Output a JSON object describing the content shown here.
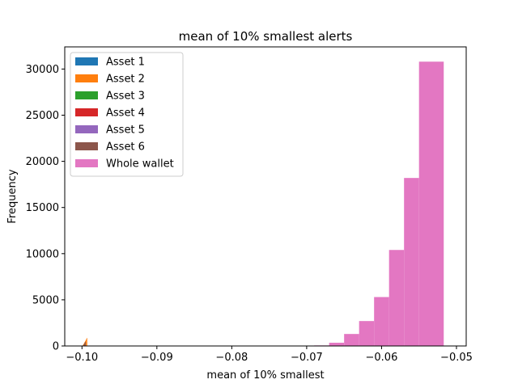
{
  "chart_data": {
    "type": "bar",
    "title": "mean of 10% smallest alerts",
    "xlabel": "mean of 10% smallest",
    "ylabel": "Frequency",
    "xlim": [
      -0.1023,
      -0.0487
    ],
    "ylim": [
      0,
      32400
    ],
    "xticks": [
      -0.1,
      -0.09,
      -0.08,
      -0.07,
      -0.06,
      -0.05
    ],
    "xtick_labels": [
      "−0.10",
      "−0.09",
      "−0.08",
      "−0.07",
      "−0.06",
      "−0.05"
    ],
    "yticks": [
      0,
      5000,
      10000,
      15000,
      20000,
      25000,
      30000
    ],
    "ytick_labels": [
      "0",
      "5000",
      "10000",
      "15000",
      "20000",
      "25000",
      "30000"
    ],
    "legend_position": "upper-left",
    "series": [
      {
        "name": "Asset 1",
        "color": "#1f77b4",
        "bins": [
          [
            -0.1,
            -0.0999,
            40
          ],
          [
            -0.0999,
            -0.0998,
            60
          ]
        ]
      },
      {
        "name": "Asset 2",
        "color": "#ff7f0e",
        "bins": [
          [
            -0.0999,
            -0.0998,
            120
          ],
          [
            -0.0998,
            -0.0997,
            250
          ],
          [
            -0.0997,
            -0.0996,
            400
          ],
          [
            -0.0996,
            -0.0995,
            550
          ],
          [
            -0.0995,
            -0.0994,
            700
          ],
          [
            -0.0994,
            -0.0993,
            850
          ]
        ]
      },
      {
        "name": "Asset 3",
        "color": "#2ca02c",
        "bins": [
          [
            -0.1,
            -0.0999,
            30
          ]
        ]
      },
      {
        "name": "Asset 4",
        "color": "#d62728",
        "bins": [
          [
            -0.0999,
            -0.0998,
            30
          ]
        ]
      },
      {
        "name": "Asset 5",
        "color": "#9467bd",
        "bins": [
          [
            -0.1,
            -0.0999,
            20
          ]
        ]
      },
      {
        "name": "Asset 6",
        "color": "#8c564b",
        "bins": [
          [
            -0.0998,
            -0.0997,
            150
          ],
          [
            -0.0997,
            -0.0996,
            300
          ],
          [
            -0.0996,
            -0.0995,
            450
          ]
        ]
      },
      {
        "name": "Whole wallet",
        "color": "#e377c2",
        "bins": [
          [
            -0.069,
            -0.067,
            60
          ],
          [
            -0.067,
            -0.065,
            350
          ],
          [
            -0.065,
            -0.063,
            1300
          ],
          [
            -0.063,
            -0.061,
            2700
          ],
          [
            -0.061,
            -0.059,
            5300
          ],
          [
            -0.059,
            -0.057,
            10400
          ],
          [
            -0.057,
            -0.055,
            18200
          ],
          [
            -0.055,
            -0.0517,
            30800
          ]
        ]
      }
    ]
  }
}
